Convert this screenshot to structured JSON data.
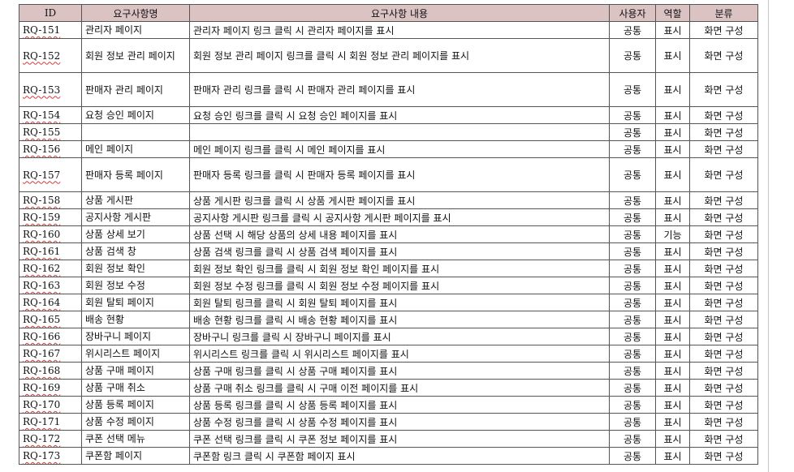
{
  "columns": {
    "id": "ID",
    "name": "요구사항명",
    "desc": "요구사항 내용",
    "user": "사용자",
    "role": "역할",
    "category": "분류"
  },
  "rows": [
    {
      "id": "RQ-151",
      "name": "관리자 페이지",
      "desc": "관리자 페이지 링크 클릭 시 관리자 페이지를 표시",
      "user": "공통",
      "role": "표시",
      "category": "화면 구성"
    },
    {
      "id": "RQ-152",
      "name": "회원 정보 관리 페이지",
      "desc": "회원 정보 관리 페이지 링크를 클릭 시 회원 정보 관리 페이지를 표시",
      "user": "공통",
      "role": "표시",
      "category": "화면 구성"
    },
    {
      "id": "RQ-153",
      "name": "판매자 관리 페이지",
      "desc": "판매자 관리 링크를 클릭 시 판매자 관리 페이지를 표시",
      "user": "공통",
      "role": "표시",
      "category": "화면 구성"
    },
    {
      "id": "RQ-154",
      "name": "요청 승인 페이지",
      "desc": "요청 승인 링크를 클릭 시 요청 승인 페이지를 표시",
      "user": "공통",
      "role": "표시",
      "category": "화면 구성"
    },
    {
      "id": "RQ-155",
      "name": "",
      "desc": "",
      "user": "공통",
      "role": "표시",
      "category": "화면 구성"
    },
    {
      "id": "RQ-156",
      "name": "메인 페이지",
      "desc": "메인 페이지 링크를 클릭 시 메인 페이지를 표시",
      "user": "공통",
      "role": "표시",
      "category": "화면 구성"
    },
    {
      "id": "RQ-157",
      "name": "판매자 등록 페이지",
      "desc": "판매자 등록 링크를 클릭 시 판매자 등록 페이지를 표시",
      "user": "공통",
      "role": "표시",
      "category": "화면 구성"
    },
    {
      "id": "RQ-158",
      "name": "상품 게시판",
      "desc": "상품 게시판 링크를 클릭 시 상품 게시판 페이지를 표시",
      "user": "공통",
      "role": "표시",
      "category": "화면 구성"
    },
    {
      "id": "RQ-159",
      "name": "공지사항 게시판",
      "desc": "공지사항 게시판 링크를 클릭 시 공지사항 게시판 페이지를 표시",
      "user": "공통",
      "role": "표시",
      "category": "화면 구성"
    },
    {
      "id": "RQ-160",
      "name": "상품 상세 보기",
      "desc": "상품 선택 시 해당 상품의 상세 내용 페이지를 표시",
      "user": "공통",
      "role": "기능",
      "category": "화면 구성"
    },
    {
      "id": "RQ-161",
      "name": "상품 검색 창",
      "desc": "상품 검색 링크를 클릭 시 상품 검색 페이지를 표시",
      "user": "공통",
      "role": "표시",
      "category": "화면 구성"
    },
    {
      "id": "RQ-162",
      "name": "회원 정보 확인",
      "desc": "회원 정보 확인 링크를 클릭 시 회원 정보 확인 페이지를 표시",
      "user": "공통",
      "role": "표시",
      "category": "화면 구성"
    },
    {
      "id": "RQ-163",
      "name": "회원 정보 수정",
      "desc": "회원 정보 수정 링크를 클릭 시 회원 정보 수정 페이지를 표시",
      "user": "공통",
      "role": "표시",
      "category": "화면 구성"
    },
    {
      "id": "RQ-164",
      "name": "회원 탈퇴 페이지",
      "desc": "회원 탈퇴 링크를 클릭 시 회원 탈퇴 페이지를 표시",
      "user": "공통",
      "role": "표시",
      "category": "화면 구성"
    },
    {
      "id": "RQ-165",
      "name": "배송 현황",
      "desc": "배송 현황 링크를 클릭 시 배송 현황 페이지를 표시",
      "user": "공통",
      "role": "표시",
      "category": "화면 구성"
    },
    {
      "id": "RQ-166",
      "name": "장바구니 페이지",
      "desc": "장바구니 링크를 클릭 시 장바구니 페이지를 표시",
      "user": "공통",
      "role": "표시",
      "category": "화면 구성"
    },
    {
      "id": "RQ-167",
      "name": "위시리스트 페이지",
      "desc": "위시리스트 링크를 클릭 시 위시리스트 페이지를 표시",
      "user": "공통",
      "role": "표시",
      "category": "화면 구성"
    },
    {
      "id": "RQ-168",
      "name": "상품 구매 페이지",
      "desc": "상품 구매 링크를 클릭 시 상품 구매 페이지를 표시",
      "user": "공통",
      "role": "표시",
      "category": "화면 구성"
    },
    {
      "id": "RQ-169",
      "name": "상품 구매 취소",
      "desc": "상품 구매 취소 링크를 클릭 시 구매 이전 페이지를 표시",
      "user": "공통",
      "role": "표시",
      "category": "화면 구성"
    },
    {
      "id": "RQ-170",
      "name": "상품 등록 페이지",
      "desc": "상품 등록 링크를 클릭 시 상품 등록 페이지를 표시",
      "user": "공통",
      "role": "표시",
      "category": "화면 구성"
    },
    {
      "id": "RQ-171",
      "name": "상품 수정 페이지",
      "desc": "상품 수정 링크를 클릭 시 상품 수정 페이지를 표시",
      "user": "공통",
      "role": "표시",
      "category": "화면 구성"
    },
    {
      "id": "RQ-172",
      "name": "쿠폰 선택 메뉴",
      "desc": "쿠폰 선택 링크를 클릭 시 쿠폰 정보 페이지를 표시",
      "user": "공통",
      "role": "표시",
      "category": "화면 구성"
    },
    {
      "id": "RQ-173",
      "name": "쿠폰함 페이지",
      "desc": "쿠폰함 링크 클릭 시 쿠폰함 페이지 표시",
      "user": "공통",
      "role": "표시",
      "category": "화면 구성"
    }
  ]
}
